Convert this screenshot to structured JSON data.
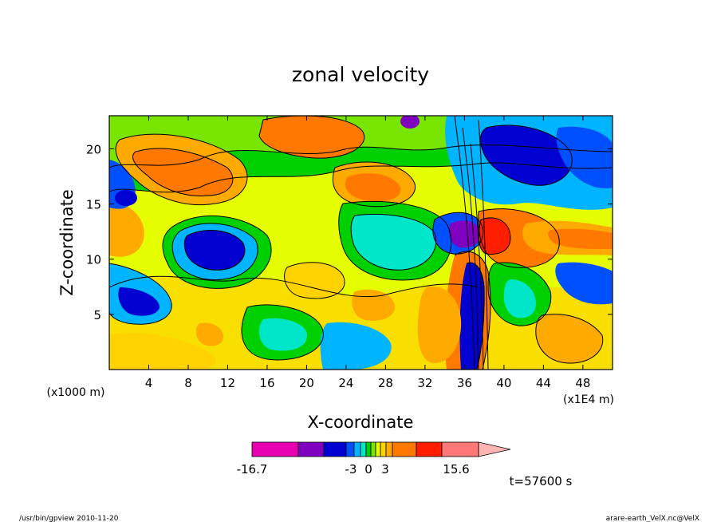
{
  "chart_data": {
    "type": "heatmap",
    "title": "zonal velocity",
    "xlabel": "X-coordinate",
    "ylabel": "Z-coordinate",
    "x_unit_left": "(x1000 m)",
    "x_unit_right": "(x1E4 m)",
    "xlim": [
      0,
      51
    ],
    "ylim": [
      0,
      23
    ],
    "x_ticks": [
      4,
      8,
      12,
      16,
      20,
      24,
      28,
      32,
      36,
      40,
      44,
      48
    ],
    "y_ticks": [
      5,
      10,
      15,
      20
    ],
    "x_tick_labels": [
      "4",
      "8",
      "12",
      "16",
      "20",
      "24",
      "28",
      "32",
      "36",
      "40",
      "44",
      "48"
    ],
    "y_tick_labels": [
      "5",
      "10",
      "15",
      "20"
    ],
    "colorbar": {
      "min": -16.7,
      "max": 15.6,
      "labels": [
        "-16.7",
        "-3",
        "0",
        "3",
        "15.6"
      ],
      "colors": [
        "#e600b0",
        "#8000c0",
        "#0000d0",
        "#0050ff",
        "#00b4ff",
        "#00e6c8",
        "#00d000",
        "#78e600",
        "#e6ff00",
        "#ffd200",
        "#ffaa00",
        "#ff7800",
        "#ff1e00",
        "#ff7878",
        "#ffb4b4"
      ]
    },
    "annotation_time": "t=57600 s",
    "footer_left": "/usr/bin/gpview  2010-11-20",
    "footer_right": "arare-earth_VelX.nc@VelX",
    "approx_fields": [
      {
        "x": 13,
        "z": 17,
        "value": 9
      },
      {
        "x": 19,
        "z": 21,
        "value": 8
      },
      {
        "x": 28,
        "z": 17,
        "value": 8
      },
      {
        "x": 10,
        "z": 11,
        "value": -10
      },
      {
        "x": 37,
        "z": 12,
        "value": -16
      },
      {
        "x": 39.5,
        "z": 12,
        "value": 14
      },
      {
        "x": 46,
        "z": 12,
        "value": 6
      },
      {
        "x": 45,
        "z": 18,
        "value": -8
      },
      {
        "x": 4,
        "z": 6,
        "value": -8
      },
      {
        "x": 24,
        "z": 9,
        "value": 2
      },
      {
        "x": 22,
        "z": 3,
        "value": -4
      },
      {
        "x": 31,
        "z": 7,
        "value": 6
      }
    ]
  }
}
